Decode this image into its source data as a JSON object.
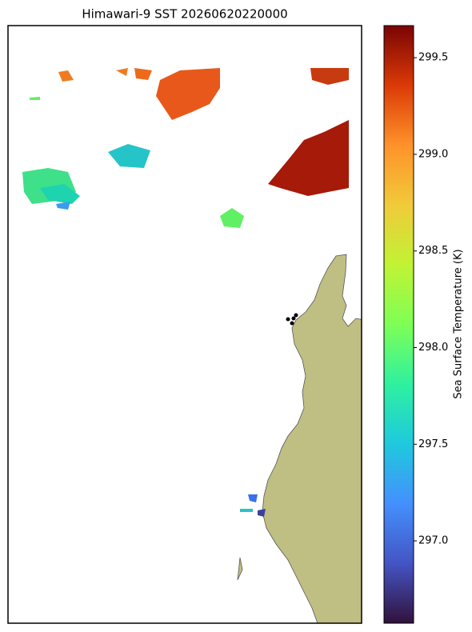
{
  "title": "Himawari-9 SST 20260620220000",
  "colorbar": {
    "label": "Sea Surface Temperature (K)",
    "lim": [
      296.574,
      299.666
    ],
    "ticks": [
      {
        "value": 297,
        "label": "297.0"
      },
      297.5,
      {
        "value": 298,
        "label": "298.0"
      },
      298.5,
      {
        "value": 299,
        "label": "299.0"
      },
      299.5
    ]
  }
}
